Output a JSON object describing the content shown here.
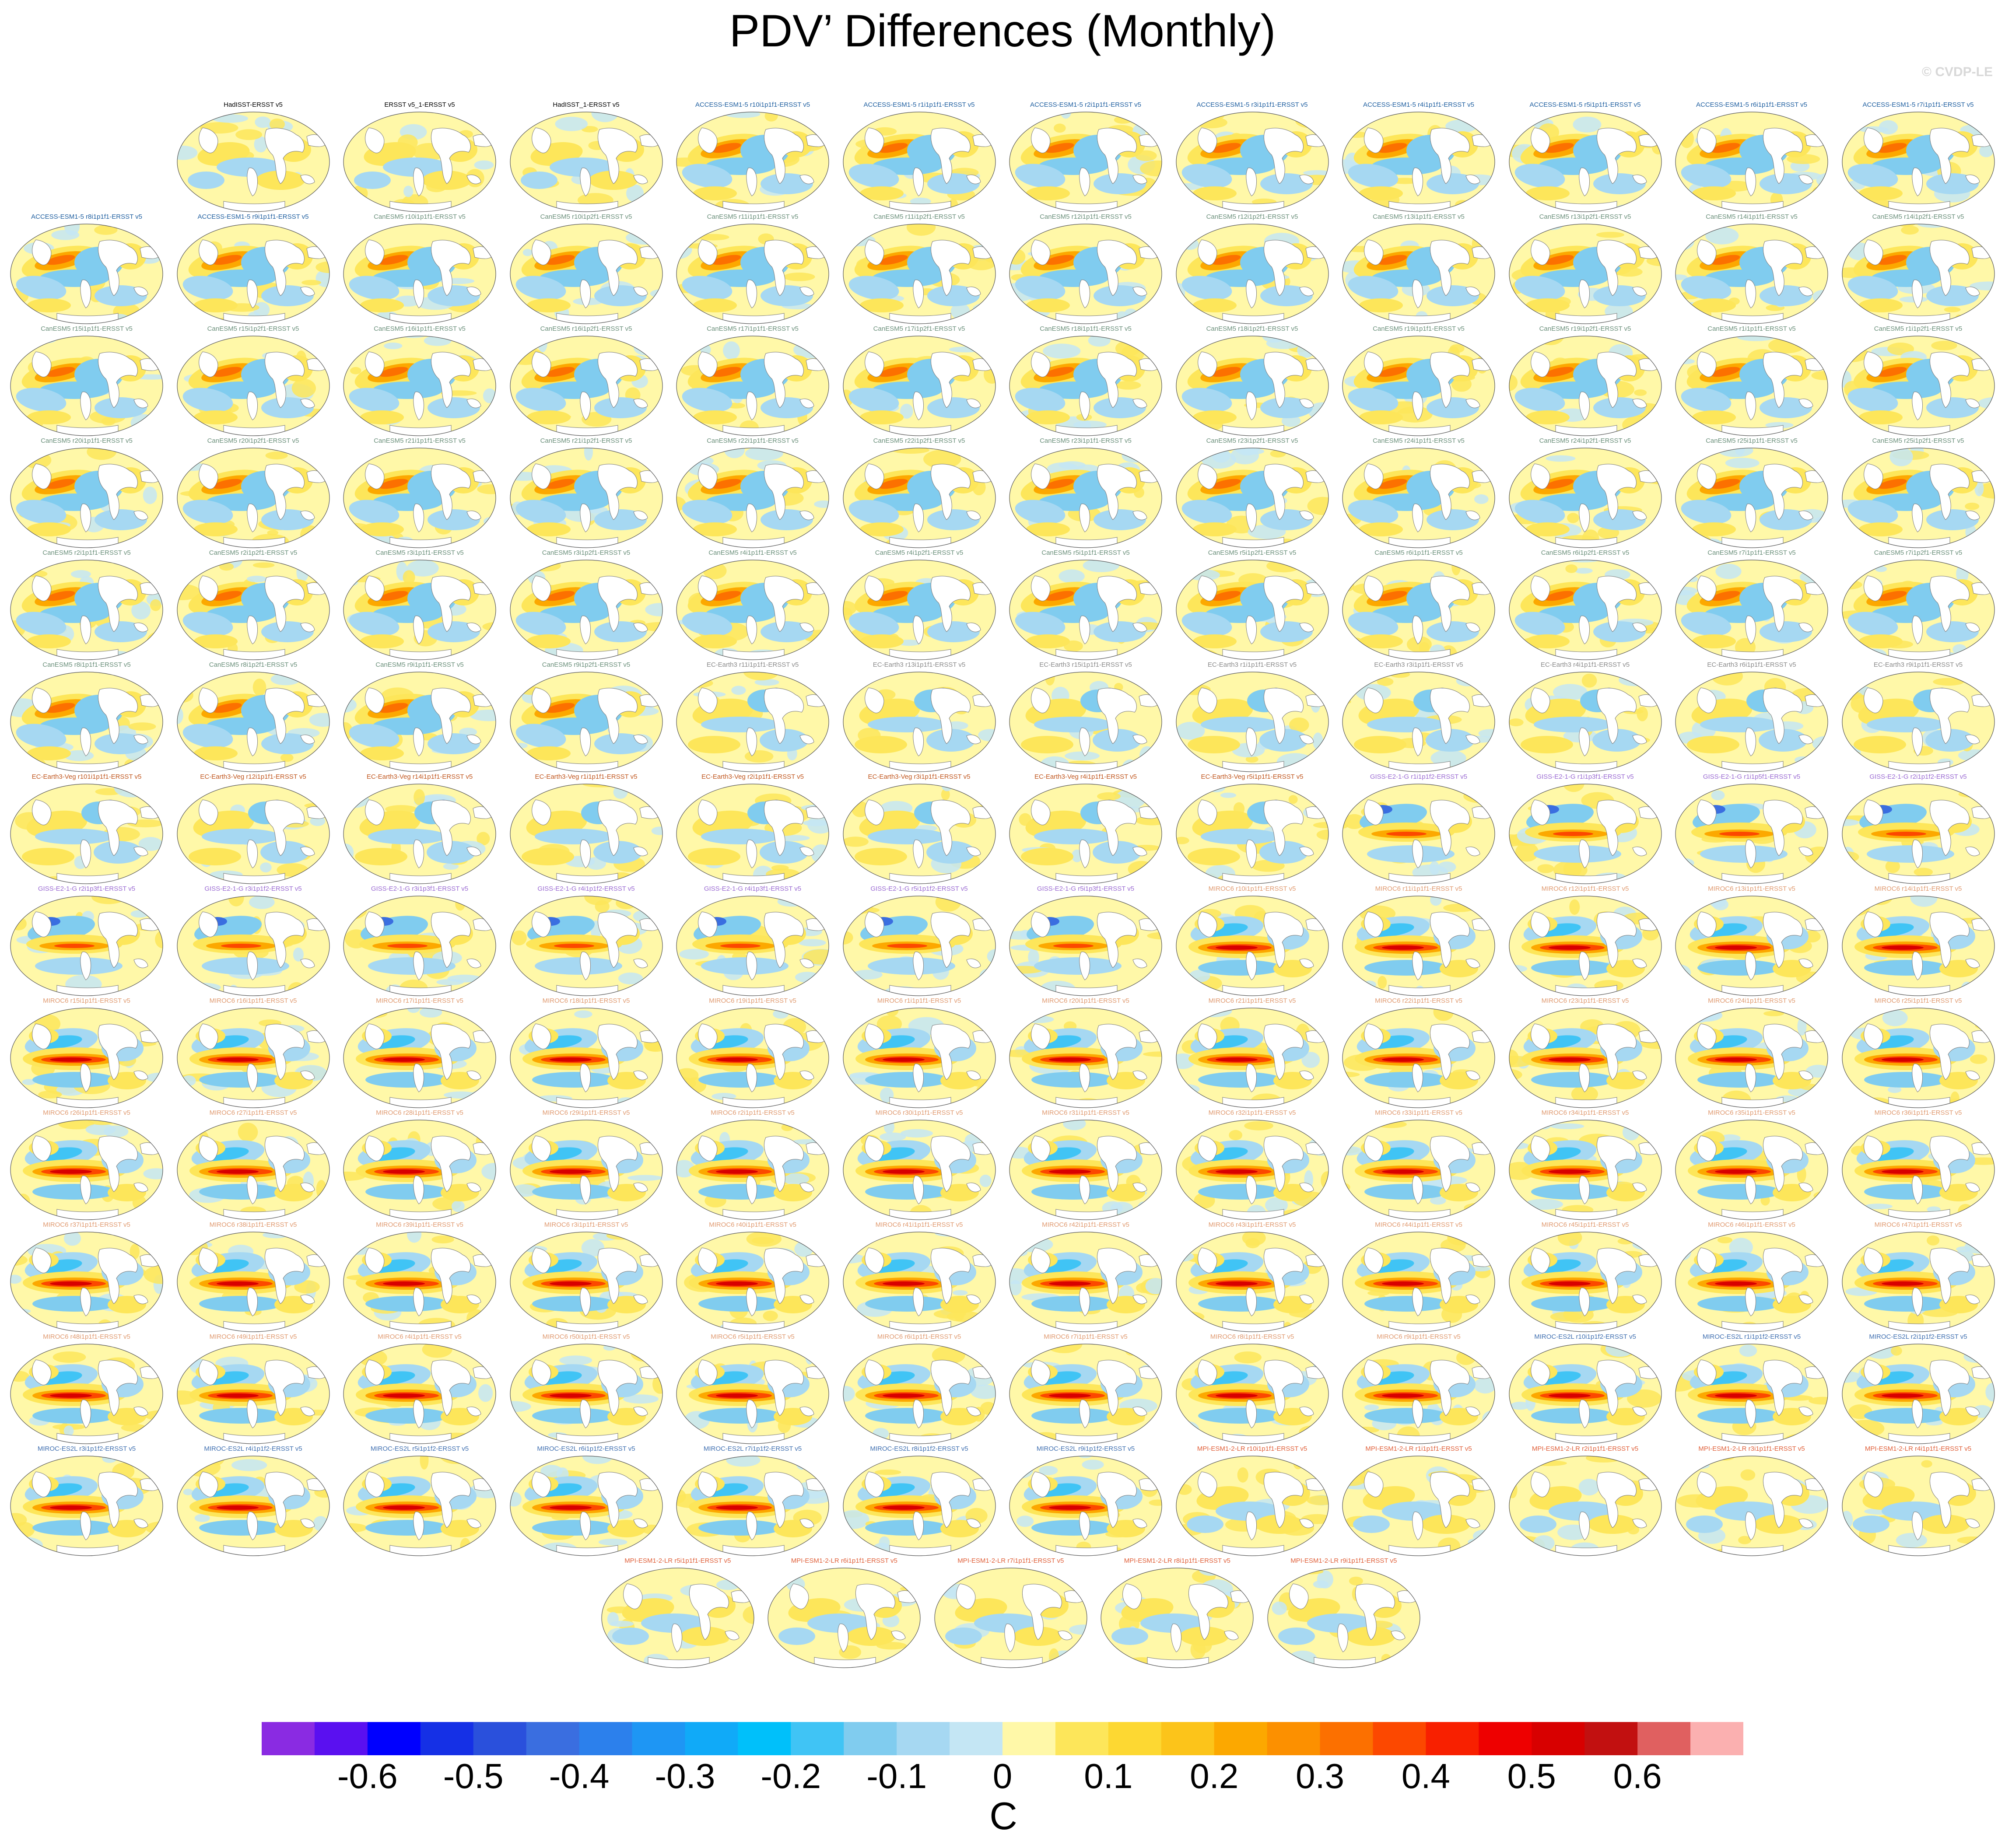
{
  "title": "PDV’ Differences (Monthly)",
  "copyright": "© CVDP-LE",
  "chart_data": {
    "type": "heatmap",
    "title": "PDV’ Differences (Monthly)",
    "units": "C",
    "colorbar": {
      "tick_labels": [
        "-0.6",
        "-0.5",
        "-0.4",
        "-0.3",
        "-0.2",
        "-0.1",
        "0",
        "0.1",
        "0.2",
        "0.3",
        "0.4",
        "0.5",
        "0.6"
      ],
      "colors": [
        "#8a2be2",
        "#5a10f0",
        "#0000ff",
        "#1530e6",
        "#2a50dc",
        "#3a6ee0",
        "#2c80ec",
        "#1e96f4",
        "#10aaf8",
        "#00c0fa",
        "#40c4f5",
        "#80ccef",
        "#a6d8f2",
        "#c4e6f4",
        "#fff8a8",
        "#fde65a",
        "#fdd832",
        "#fcc41a",
        "#fca800",
        "#fc9000",
        "#fc7000",
        "#fc4800",
        "#f82000",
        "#ee0000",
        "#d80000",
        "#c21010",
        "#e06060",
        "#fbb0b0"
      ]
    },
    "rows": [
      {
        "offset": 1,
        "panels": [
          {
            "name": "HadISST-ERSST v5",
            "group": "obs"
          },
          {
            "name": "ERSST v5_1-ERSST v5",
            "group": "obs"
          },
          {
            "name": "HadISST_1-ERSST v5",
            "group": "obs"
          },
          {
            "name": "ACCESS-ESM1-5 r10i1p1f1-ERSST v5",
            "group": "access"
          },
          {
            "name": "ACCESS-ESM1-5 r1i1p1f1-ERSST v5",
            "group": "access"
          },
          {
            "name": "ACCESS-ESM1-5 r2i1p1f1-ERSST v5",
            "group": "access"
          },
          {
            "name": "ACCESS-ESM1-5 r3i1p1f1-ERSST v5",
            "group": "access"
          },
          {
            "name": "ACCESS-ESM1-5 r4i1p1f1-ERSST v5",
            "group": "access"
          },
          {
            "name": "ACCESS-ESM1-5 r5i1p1f1-ERSST v5",
            "group": "access"
          },
          {
            "name": "ACCESS-ESM1-5 r6i1p1f1-ERSST v5",
            "group": "access"
          },
          {
            "name": "ACCESS-ESM1-5 r7i1p1f1-ERSST v5",
            "group": "access"
          }
        ]
      },
      {
        "offset": 0,
        "panels": [
          {
            "name": "ACCESS-ESM1-5 r8i1p1f1-ERSST v5",
            "group": "access"
          },
          {
            "name": "ACCESS-ESM1-5 r9i1p1f1-ERSST v5",
            "group": "access"
          },
          {
            "name": "CanESM5 r10i1p1f1-ERSST v5",
            "group": "canesm"
          },
          {
            "name": "CanESM5 r10i1p2f1-ERSST v5",
            "group": "canesm"
          },
          {
            "name": "CanESM5 r11i1p1f1-ERSST v5",
            "group": "canesm"
          },
          {
            "name": "CanESM5 r11i1p2f1-ERSST v5",
            "group": "canesm"
          },
          {
            "name": "CanESM5 r12i1p1f1-ERSST v5",
            "group": "canesm"
          },
          {
            "name": "CanESM5 r12i1p2f1-ERSST v5",
            "group": "canesm"
          },
          {
            "name": "CanESM5 r13i1p1f1-ERSST v5",
            "group": "canesm"
          },
          {
            "name": "CanESM5 r13i1p2f1-ERSST v5",
            "group": "canesm"
          },
          {
            "name": "CanESM5 r14i1p1f1-ERSST v5",
            "group": "canesm"
          },
          {
            "name": "CanESM5 r14i1p2f1-ERSST v5",
            "group": "canesm"
          }
        ]
      },
      {
        "offset": 0,
        "panels": [
          {
            "name": "CanESM5 r15i1p1f1-ERSST v5",
            "group": "canesm"
          },
          {
            "name": "CanESM5 r15i1p2f1-ERSST v5",
            "group": "canesm"
          },
          {
            "name": "CanESM5 r16i1p1f1-ERSST v5",
            "group": "canesm"
          },
          {
            "name": "CanESM5 r16i1p2f1-ERSST v5",
            "group": "canesm"
          },
          {
            "name": "CanESM5 r17i1p1f1-ERSST v5",
            "group": "canesm"
          },
          {
            "name": "CanESM5 r17i1p2f1-ERSST v5",
            "group": "canesm"
          },
          {
            "name": "CanESM5 r18i1p1f1-ERSST v5",
            "group": "canesm"
          },
          {
            "name": "CanESM5 r18i1p2f1-ERSST v5",
            "group": "canesm"
          },
          {
            "name": "CanESM5 r19i1p1f1-ERSST v5",
            "group": "canesm"
          },
          {
            "name": "CanESM5 r19i1p2f1-ERSST v5",
            "group": "canesm"
          },
          {
            "name": "CanESM5 r1i1p1f1-ERSST v5",
            "group": "canesm"
          },
          {
            "name": "CanESM5 r1i1p2f1-ERSST v5",
            "group": "canesm"
          }
        ]
      },
      {
        "offset": 0,
        "panels": [
          {
            "name": "CanESM5 r20i1p1f1-ERSST v5",
            "group": "canesm"
          },
          {
            "name": "CanESM5 r20i1p2f1-ERSST v5",
            "group": "canesm"
          },
          {
            "name": "CanESM5 r21i1p1f1-ERSST v5",
            "group": "canesm"
          },
          {
            "name": "CanESM5 r21i1p2f1-ERSST v5",
            "group": "canesm"
          },
          {
            "name": "CanESM5 r22i1p1f1-ERSST v5",
            "group": "canesm"
          },
          {
            "name": "CanESM5 r22i1p2f1-ERSST v5",
            "group": "canesm"
          },
          {
            "name": "CanESM5 r23i1p1f1-ERSST v5",
            "group": "canesm"
          },
          {
            "name": "CanESM5 r23i1p2f1-ERSST v5",
            "group": "canesm"
          },
          {
            "name": "CanESM5 r24i1p1f1-ERSST v5",
            "group": "canesm"
          },
          {
            "name": "CanESM5 r24i1p2f1-ERSST v5",
            "group": "canesm"
          },
          {
            "name": "CanESM5 r25i1p1f1-ERSST v5",
            "group": "canesm"
          },
          {
            "name": "CanESM5 r25i1p2f1-ERSST v5",
            "group": "canesm"
          }
        ]
      },
      {
        "offset": 0,
        "panels": [
          {
            "name": "CanESM5 r2i1p1f1-ERSST v5",
            "group": "canesm"
          },
          {
            "name": "CanESM5 r2i1p2f1-ERSST v5",
            "group": "canesm"
          },
          {
            "name": "CanESM5 r3i1p1f1-ERSST v5",
            "group": "canesm"
          },
          {
            "name": "CanESM5 r3i1p2f1-ERSST v5",
            "group": "canesm"
          },
          {
            "name": "CanESM5 r4i1p1f1-ERSST v5",
            "group": "canesm"
          },
          {
            "name": "CanESM5 r4i1p2f1-ERSST v5",
            "group": "canesm"
          },
          {
            "name": "CanESM5 r5i1p1f1-ERSST v5",
            "group": "canesm"
          },
          {
            "name": "CanESM5 r5i1p2f1-ERSST v5",
            "group": "canesm"
          },
          {
            "name": "CanESM5 r6i1p1f1-ERSST v5",
            "group": "canesm"
          },
          {
            "name": "CanESM5 r6i1p2f1-ERSST v5",
            "group": "canesm"
          },
          {
            "name": "CanESM5 r7i1p1f1-ERSST v5",
            "group": "canesm"
          },
          {
            "name": "CanESM5 r7i1p2f1-ERSST v5",
            "group": "canesm"
          }
        ]
      },
      {
        "offset": 0,
        "panels": [
          {
            "name": "CanESM5 r8i1p1f1-ERSST v5",
            "group": "canesm"
          },
          {
            "name": "CanESM5 r8i1p2f1-ERSST v5",
            "group": "canesm"
          },
          {
            "name": "CanESM5 r9i1p1f1-ERSST v5",
            "group": "canesm"
          },
          {
            "name": "CanESM5 r9i1p2f1-ERSST v5",
            "group": "canesm"
          },
          {
            "name": "EC-Earth3 r11i1p1f1-ERSST v5",
            "group": "ecearth"
          },
          {
            "name": "EC-Earth3 r13i1p1f1-ERSST v5",
            "group": "ecearth"
          },
          {
            "name": "EC-Earth3 r15i1p1f1-ERSST v5",
            "group": "ecearth"
          },
          {
            "name": "EC-Earth3 r1i1p1f1-ERSST v5",
            "group": "ecearth"
          },
          {
            "name": "EC-Earth3 r3i1p1f1-ERSST v5",
            "group": "ecearth"
          },
          {
            "name": "EC-Earth3 r4i1p1f1-ERSST v5",
            "group": "ecearth"
          },
          {
            "name": "EC-Earth3 r6i1p1f1-ERSST v5",
            "group": "ecearth"
          },
          {
            "name": "EC-Earth3 r9i1p1f1-ERSST v5",
            "group": "ecearth"
          }
        ]
      },
      {
        "offset": 0,
        "panels": [
          {
            "name": "EC-Earth3-Veg r101i1p1f1-ERSST v5",
            "group": "ecveg"
          },
          {
            "name": "EC-Earth3-Veg r12i1p1f1-ERSST v5",
            "group": "ecveg"
          },
          {
            "name": "EC-Earth3-Veg r14i1p1f1-ERSST v5",
            "group": "ecveg"
          },
          {
            "name": "EC-Earth3-Veg r1i1p1f1-ERSST v5",
            "group": "ecveg"
          },
          {
            "name": "EC-Earth3-Veg r2i1p1f1-ERSST v5",
            "group": "ecveg"
          },
          {
            "name": "EC-Earth3-Veg r3i1p1f1-ERSST v5",
            "group": "ecveg"
          },
          {
            "name": "EC-Earth3-Veg r4i1p1f1-ERSST v5",
            "group": "ecveg"
          },
          {
            "name": "EC-Earth3-Veg r5i1p1f1-ERSST v5",
            "group": "ecveg"
          },
          {
            "name": "GISS-E2-1-G r1i1p1f2-ERSST v5",
            "group": "giss"
          },
          {
            "name": "GISS-E2-1-G r1i1p3f1-ERSST v5",
            "group": "giss"
          },
          {
            "name": "GISS-E2-1-G r1i1p5f1-ERSST v5",
            "group": "giss"
          },
          {
            "name": "GISS-E2-1-G r2i1p1f2-ERSST v5",
            "group": "giss"
          }
        ]
      },
      {
        "offset": 0,
        "panels": [
          {
            "name": "GISS-E2-1-G r2i1p3f1-ERSST v5",
            "group": "giss"
          },
          {
            "name": "GISS-E2-1-G r3i1p1f2-ERSST v5",
            "group": "giss"
          },
          {
            "name": "GISS-E2-1-G r3i1p3f1-ERSST v5",
            "group": "giss"
          },
          {
            "name": "GISS-E2-1-G r4i1p1f2-ERSST v5",
            "group": "giss"
          },
          {
            "name": "GISS-E2-1-G r4i1p3f1-ERSST v5",
            "group": "giss"
          },
          {
            "name": "GISS-E2-1-G r5i1p1f2-ERSST v5",
            "group": "giss"
          },
          {
            "name": "GISS-E2-1-G r5i1p3f1-ERSST v5",
            "group": "giss"
          },
          {
            "name": "MIROC6 r10i1p1f1-ERSST v5",
            "group": "miroc"
          },
          {
            "name": "MIROC6 r11i1p1f1-ERSST v5",
            "group": "miroc"
          },
          {
            "name": "MIROC6 r12i1p1f1-ERSST v5",
            "group": "miroc"
          },
          {
            "name": "MIROC6 r13i1p1f1-ERSST v5",
            "group": "miroc"
          },
          {
            "name": "MIROC6 r14i1p1f1-ERSST v5",
            "group": "miroc"
          }
        ]
      },
      {
        "offset": 0,
        "panels": [
          {
            "name": "MIROC6 r15i1p1f1-ERSST v5",
            "group": "miroc"
          },
          {
            "name": "MIROC6 r16i1p1f1-ERSST v5",
            "group": "miroc"
          },
          {
            "name": "MIROC6 r17i1p1f1-ERSST v5",
            "group": "miroc"
          },
          {
            "name": "MIROC6 r18i1p1f1-ERSST v5",
            "group": "miroc"
          },
          {
            "name": "MIROC6 r19i1p1f1-ERSST v5",
            "group": "miroc"
          },
          {
            "name": "MIROC6 r1i1p1f1-ERSST v5",
            "group": "miroc"
          },
          {
            "name": "MIROC6 r20i1p1f1-ERSST v5",
            "group": "miroc"
          },
          {
            "name": "MIROC6 r21i1p1f1-ERSST v5",
            "group": "miroc"
          },
          {
            "name": "MIROC6 r22i1p1f1-ERSST v5",
            "group": "miroc"
          },
          {
            "name": "MIROC6 r23i1p1f1-ERSST v5",
            "group": "miroc"
          },
          {
            "name": "MIROC6 r24i1p1f1-ERSST v5",
            "group": "miroc"
          },
          {
            "name": "MIROC6 r25i1p1f1-ERSST v5",
            "group": "miroc"
          }
        ]
      },
      {
        "offset": 0,
        "panels": [
          {
            "name": "MIROC6 r26i1p1f1-ERSST v5",
            "group": "miroc"
          },
          {
            "name": "MIROC6 r27i1p1f1-ERSST v5",
            "group": "miroc"
          },
          {
            "name": "MIROC6 r28i1p1f1-ERSST v5",
            "group": "miroc"
          },
          {
            "name": "MIROC6 r29i1p1f1-ERSST v5",
            "group": "miroc"
          },
          {
            "name": "MIROC6 r2i1p1f1-ERSST v5",
            "group": "miroc"
          },
          {
            "name": "MIROC6 r30i1p1f1-ERSST v5",
            "group": "miroc"
          },
          {
            "name": "MIROC6 r31i1p1f1-ERSST v5",
            "group": "miroc"
          },
          {
            "name": "MIROC6 r32i1p1f1-ERSST v5",
            "group": "miroc"
          },
          {
            "name": "MIROC6 r33i1p1f1-ERSST v5",
            "group": "miroc"
          },
          {
            "name": "MIROC6 r34i1p1f1-ERSST v5",
            "group": "miroc"
          },
          {
            "name": "MIROC6 r35i1p1f1-ERSST v5",
            "group": "miroc"
          },
          {
            "name": "MIROC6 r36i1p1f1-ERSST v5",
            "group": "miroc"
          }
        ]
      },
      {
        "offset": 0,
        "panels": [
          {
            "name": "MIROC6 r37i1p1f1-ERSST v5",
            "group": "miroc"
          },
          {
            "name": "MIROC6 r38i1p1f1-ERSST v5",
            "group": "miroc"
          },
          {
            "name": "MIROC6 r39i1p1f1-ERSST v5",
            "group": "miroc"
          },
          {
            "name": "MIROC6 r3i1p1f1-ERSST v5",
            "group": "miroc"
          },
          {
            "name": "MIROC6 r40i1p1f1-ERSST v5",
            "group": "miroc"
          },
          {
            "name": "MIROC6 r41i1p1f1-ERSST v5",
            "group": "miroc"
          },
          {
            "name": "MIROC6 r42i1p1f1-ERSST v5",
            "group": "miroc"
          },
          {
            "name": "MIROC6 r43i1p1f1-ERSST v5",
            "group": "miroc"
          },
          {
            "name": "MIROC6 r44i1p1f1-ERSST v5",
            "group": "miroc"
          },
          {
            "name": "MIROC6 r45i1p1f1-ERSST v5",
            "group": "miroc"
          },
          {
            "name": "MIROC6 r46i1p1f1-ERSST v5",
            "group": "miroc"
          },
          {
            "name": "MIROC6 r47i1p1f1-ERSST v5",
            "group": "miroc"
          }
        ]
      },
      {
        "offset": 0,
        "panels": [
          {
            "name": "MIROC6 r48i1p1f1-ERSST v5",
            "group": "miroc"
          },
          {
            "name": "MIROC6 r49i1p1f1-ERSST v5",
            "group": "miroc"
          },
          {
            "name": "MIROC6 r4i1p1f1-ERSST v5",
            "group": "miroc"
          },
          {
            "name": "MIROC6 r50i1p1f1-ERSST v5",
            "group": "miroc"
          },
          {
            "name": "MIROC6 r5i1p1f1-ERSST v5",
            "group": "miroc"
          },
          {
            "name": "MIROC6 r6i1p1f1-ERSST v5",
            "group": "miroc"
          },
          {
            "name": "MIROC6 r7i1p1f1-ERSST v5",
            "group": "miroc"
          },
          {
            "name": "MIROC6 r8i1p1f1-ERSST v5",
            "group": "miroc"
          },
          {
            "name": "MIROC6 r9i1p1f1-ERSST v5",
            "group": "miroc"
          },
          {
            "name": "MIROC-ES2L r10i1p1f2-ERSST v5",
            "group": "mirocesl"
          },
          {
            "name": "MIROC-ES2L r1i1p1f2-ERSST v5",
            "group": "mirocesl"
          },
          {
            "name": "MIROC-ES2L r2i1p1f2-ERSST v5",
            "group": "mirocesl"
          }
        ]
      },
      {
        "offset": 0,
        "panels": [
          {
            "name": "MIROC-ES2L r3i1p1f2-ERSST v5",
            "group": "mirocesl"
          },
          {
            "name": "MIROC-ES2L r4i1p1f2-ERSST v5",
            "group": "mirocesl"
          },
          {
            "name": "MIROC-ES2L r5i1p1f2-ERSST v5",
            "group": "mirocesl"
          },
          {
            "name": "MIROC-ES2L r6i1p1f2-ERSST v5",
            "group": "mirocesl"
          },
          {
            "name": "MIROC-ES2L r7i1p1f2-ERSST v5",
            "group": "mirocesl"
          },
          {
            "name": "MIROC-ES2L r8i1p1f2-ERSST v5",
            "group": "mirocesl"
          },
          {
            "name": "MIROC-ES2L r9i1p1f2-ERSST v5",
            "group": "mirocesl"
          },
          {
            "name": "MPI-ESM1-2-LR r10i1p1f1-ERSST v5",
            "group": "mpi"
          },
          {
            "name": "MPI-ESM1-2-LR r1i1p1f1-ERSST v5",
            "group": "mpi"
          },
          {
            "name": "MPI-ESM1-2-LR r2i1p1f1-ERSST v5",
            "group": "mpi"
          },
          {
            "name": "MPI-ESM1-2-LR r3i1p1f1-ERSST v5",
            "group": "mpi"
          },
          {
            "name": "MPI-ESM1-2-LR r4i1p1f1-ERSST v5",
            "group": "mpi"
          }
        ]
      },
      {
        "offset": 3.55,
        "panels": [
          {
            "name": "MPI-ESM1-2-LR r5i1p1f1-ERSST v5",
            "group": "mpi"
          },
          {
            "name": "MPI-ESM1-2-LR r6i1p1f1-ERSST v5",
            "group": "mpi"
          },
          {
            "name": "MPI-ESM1-2-LR r7i1p1f1-ERSST v5",
            "group": "mpi"
          },
          {
            "name": "MPI-ESM1-2-LR r8i1p1f1-ERSST v5",
            "group": "mpi"
          },
          {
            "name": "MPI-ESM1-2-LR r9i1p1f1-ERSST v5",
            "group": "mpi"
          }
        ]
      }
    ],
    "group_styles": {
      "obs": {
        "title_color": "#000000",
        "pattern": "weak"
      },
      "access": {
        "title_color": "#1f5fa0",
        "pattern": "pdo"
      },
      "canesm": {
        "title_color": "#6a8f7a",
        "pattern": "pdo"
      },
      "ecearth": {
        "title_color": "#8a8a8a",
        "pattern": "mixed"
      },
      "ecveg": {
        "title_color": "#c0561e",
        "pattern": "mixed"
      },
      "giss": {
        "title_color": "#9a6ad2",
        "pattern": "band"
      },
      "miroc": {
        "title_color": "#e09a70",
        "pattern": "strong"
      },
      "mirocesl": {
        "title_color": "#3f6fb0",
        "pattern": "strong"
      },
      "mpi": {
        "title_color": "#e0603a",
        "pattern": "weak"
      }
    }
  }
}
